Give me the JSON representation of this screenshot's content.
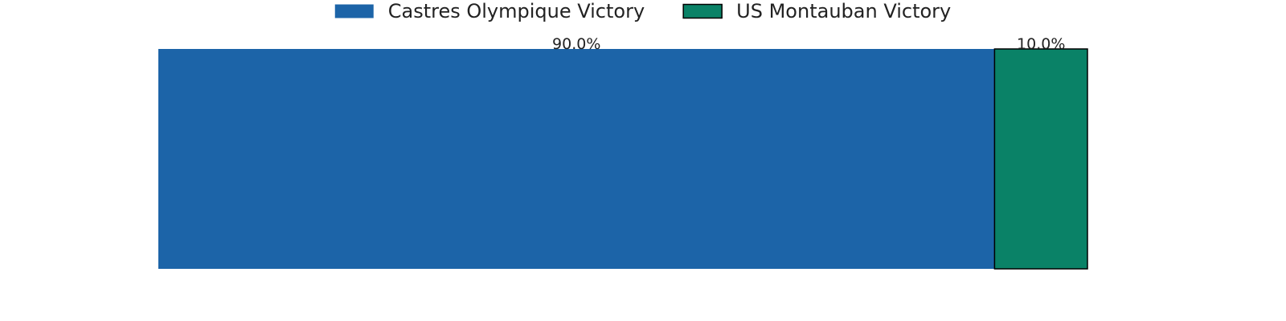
{
  "chart_data": {
    "type": "bar",
    "orientation": "horizontal-stacked",
    "categories": [
      ""
    ],
    "series": [
      {
        "name": "Castres Olympique Victory",
        "values": [
          90.0
        ],
        "color": "#1c64a8",
        "label": "90.0%"
      },
      {
        "name": "US Montauban Victory",
        "values": [
          10.0
        ],
        "color": "#0a8267",
        "label": "10.0%"
      }
    ],
    "xlim": [
      0,
      100
    ],
    "grid": false,
    "axes_visible": false,
    "legend_placement": "top-center",
    "title": "",
    "xlabel": "",
    "ylabel": ""
  }
}
